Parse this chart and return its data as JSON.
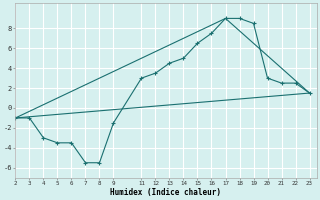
{
  "xlabel": "Humidex (Indice chaleur)",
  "ylabel": "",
  "bg_color": "#d6f0ef",
  "grid_color": "#ffffff",
  "line_color": "#1a7070",
  "xlim": [
    2,
    23.5
  ],
  "ylim": [
    -7,
    10.5
  ],
  "xticks": [
    2,
    3,
    4,
    5,
    6,
    7,
    8,
    9,
    11,
    12,
    13,
    14,
    15,
    16,
    17,
    18,
    19,
    20,
    21,
    22,
    23
  ],
  "yticks": [
    -6,
    -4,
    -2,
    0,
    2,
    4,
    6,
    8
  ],
  "series": {
    "line1_x": [
      2,
      3,
      4,
      5,
      6,
      7,
      8,
      9,
      11,
      12,
      13,
      14,
      15,
      16,
      17,
      18,
      19,
      20,
      21,
      22,
      23
    ],
    "line1_y": [
      -1,
      -1,
      -3,
      -3.5,
      -3.5,
      -5.5,
      -5.5,
      -1.5,
      3,
      3.5,
      4.5,
      5,
      6.5,
      7.5,
      9,
      9,
      8.5,
      3,
      2.5,
      2.5,
      1.5
    ],
    "line2_x": [
      2,
      23
    ],
    "line2_y": [
      -1,
      1.5
    ],
    "line3_x": [
      2,
      17,
      23
    ],
    "line3_y": [
      -1,
      9,
      1.5
    ]
  }
}
